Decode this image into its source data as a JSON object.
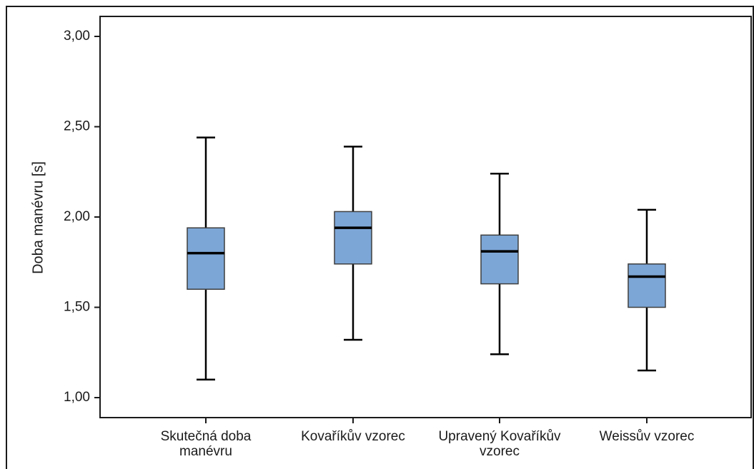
{
  "chart_data": {
    "type": "boxplot",
    "title": "",
    "xlabel": "",
    "ylabel": "Doba manévru [s]",
    "ylim": [
      0.9,
      3.08
    ],
    "yticks": [
      1.0,
      1.5,
      2.0,
      2.5,
      3.0
    ],
    "ytick_labels": [
      "1,00",
      "1,50",
      "2,00",
      "2,50",
      "3,00"
    ],
    "grid": false,
    "legend": false,
    "box_color": "#7ca6d6",
    "box_border_color": "#3f3f3f",
    "median_color": "#000000",
    "categories": [
      {
        "label": [
          "Skutečná doba",
          "manévru"
        ],
        "min": 1.1,
        "q1": 1.6,
        "median": 1.8,
        "q3": 1.94,
        "max": 2.44
      },
      {
        "label": [
          "Kovaříkův vzorec"
        ],
        "min": 1.32,
        "q1": 1.74,
        "median": 1.94,
        "q3": 2.03,
        "max": 2.39
      },
      {
        "label": [
          "Upravený Kovaříkův",
          "vzorec"
        ],
        "min": 1.24,
        "q1": 1.63,
        "median": 1.81,
        "q3": 1.9,
        "max": 2.24
      },
      {
        "label": [
          "Weissův vzorec"
        ],
        "min": 1.15,
        "q1": 1.5,
        "median": 1.67,
        "q3": 1.74,
        "max": 2.04
      }
    ]
  }
}
